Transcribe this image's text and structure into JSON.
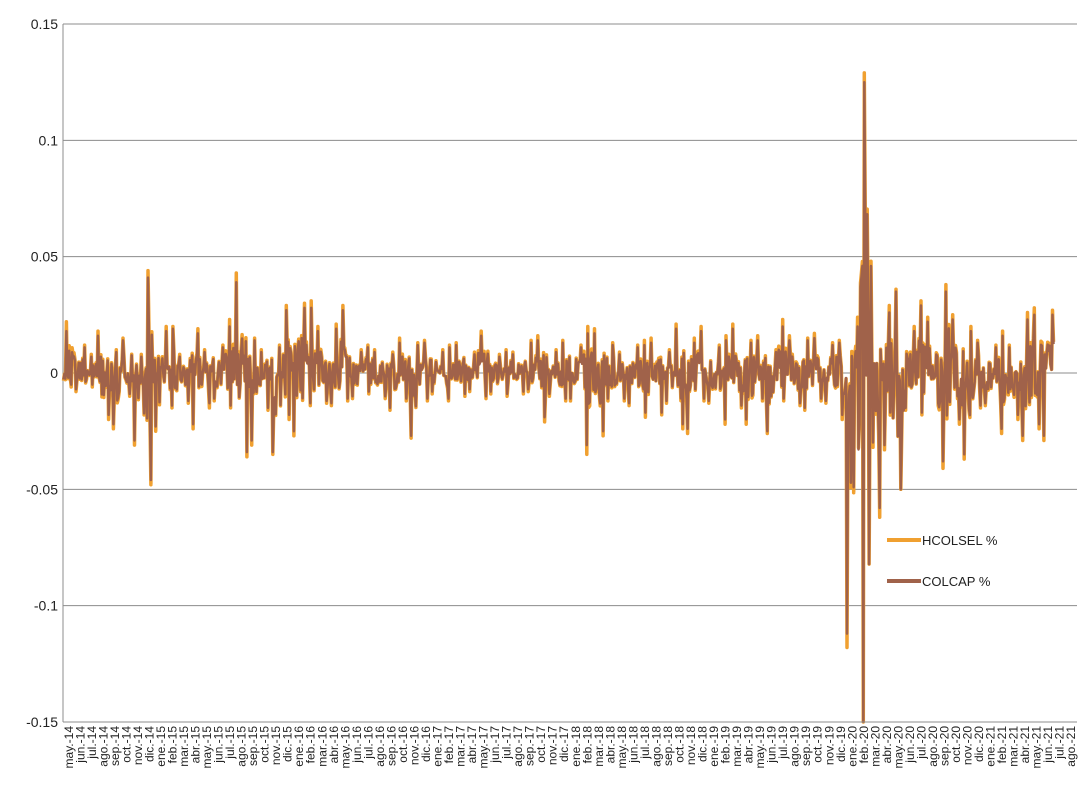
{
  "chart_data": {
    "type": "line",
    "title": "",
    "xlabel": "",
    "ylabel": "",
    "ylim": [
      -0.15,
      0.15
    ],
    "yticks": [
      0.15,
      0.1,
      0.05,
      0,
      -0.05,
      -0.1,
      -0.15
    ],
    "ytick_labels": [
      "0.15",
      "0.1",
      "0.05",
      "0",
      "-0.05",
      "-0.1",
      "-0.15"
    ],
    "grid": true,
    "legend_position": "right-inside",
    "x_categories": [
      "may.-14",
      "jun.-14",
      "jul.-14",
      "ago.-14",
      "sep.-14",
      "oct.-14",
      "nov.-14",
      "dic.-14",
      "ene.-15",
      "feb.-15",
      "mar.-15",
      "abr.-15",
      "may.-15",
      "jun.-15",
      "jul.-15",
      "ago.-15",
      "sep.-15",
      "oct.-15",
      "nov.-15",
      "dic.-15",
      "ene.-16",
      "feb.-16",
      "mar.-16",
      "abr.-16",
      "may.-16",
      "jun.-16",
      "jul.-16",
      "ago.-16",
      "sep.-16",
      "oct.-16",
      "nov.-16",
      "dic.-16",
      "ene.-17",
      "feb.-17",
      "mar.-17",
      "abr.-17",
      "may.-17",
      "jun.-17",
      "jul.-17",
      "ago.-17",
      "sep.-17",
      "oct.-17",
      "nov.-17",
      "dic.-17",
      "ene.-18",
      "feb.-18",
      "mar.-18",
      "abr.-18",
      "may.-18",
      "jun.-18",
      "jul.-18",
      "ago.-18",
      "sep.-18",
      "oct.-18",
      "nov.-18",
      "dic.-18",
      "ene.-19",
      "feb.-19",
      "mar.-19",
      "abr.-19",
      "may.-19",
      "jun.-19",
      "jul.-19",
      "ago.-19",
      "sep.-19",
      "oct.-19",
      "nov.-19",
      "dic.-19",
      "ene.-20",
      "feb.-20",
      "mar.-20",
      "abr.-20",
      "may.-20",
      "jun.-20",
      "jul.-20",
      "ago.-20",
      "sep.-20",
      "oct.-20",
      "nov.-20",
      "dic.-20",
      "ene.-21",
      "feb.-21",
      "mar.-21",
      "abr.-21",
      "may.-21",
      "jun.-21",
      "jul.-21",
      "ago.-21"
    ],
    "series": [
      {
        "name": "HCOLSEL %",
        "color": "#f0a030",
        "monthly_max": [
          0.022,
          0.012,
          0.008,
          0.018,
          0.01,
          0.015,
          0.008,
          0.044,
          0.02,
          0.02,
          0.008,
          0.019,
          0.01,
          0.012,
          0.023,
          0.043,
          0.015,
          0.01,
          0.012,
          0.029,
          0.03,
          0.031,
          0.02,
          0.021,
          0.029,
          0.01,
          0.012,
          0.01,
          0.009,
          0.015,
          0.013,
          0.014,
          0.01,
          0.012,
          0.013,
          0.009,
          0.018,
          0.008,
          0.01,
          0.009,
          0.014,
          0.016,
          0.01,
          0.014,
          0.012,
          0.02,
          0.019,
          0.013,
          0.009,
          0.012,
          0.014,
          0.015,
          0.01,
          0.021,
          0.015,
          0.02,
          0.012,
          0.016,
          0.021,
          0.014,
          0.016,
          0.01,
          0.023,
          0.016,
          0.015,
          0.017,
          0.013,
          0.014,
          0.024,
          0.129,
          0.048,
          0.029,
          0.036,
          0.02,
          0.031,
          0.024,
          0.038,
          0.025,
          0.02,
          0.014,
          0.012,
          0.018,
          0.012,
          0.026,
          0.028,
          0.027
        ],
        "monthly_min": [
          -0.006,
          -0.008,
          -0.006,
          -0.02,
          -0.024,
          -0.01,
          -0.031,
          -0.048,
          -0.025,
          -0.015,
          -0.013,
          -0.024,
          -0.015,
          -0.012,
          -0.015,
          -0.036,
          -0.031,
          -0.016,
          -0.035,
          -0.02,
          -0.027,
          -0.014,
          -0.013,
          -0.014,
          -0.012,
          -0.011,
          -0.009,
          -0.011,
          -0.016,
          -0.012,
          -0.028,
          -0.012,
          -0.009,
          -0.012,
          -0.01,
          -0.008,
          -0.011,
          -0.009,
          -0.01,
          -0.009,
          -0.008,
          -0.021,
          -0.01,
          -0.012,
          -0.012,
          -0.035,
          -0.027,
          -0.012,
          -0.012,
          -0.014,
          -0.019,
          -0.018,
          -0.013,
          -0.024,
          -0.026,
          -0.012,
          -0.013,
          -0.022,
          -0.015,
          -0.022,
          -0.012,
          -0.026,
          -0.012,
          -0.014,
          -0.016,
          -0.012,
          -0.013,
          -0.02,
          -0.118,
          -0.15,
          -0.062,
          -0.033,
          -0.05,
          -0.016,
          -0.018,
          -0.014,
          -0.041,
          -0.022,
          -0.037,
          -0.015,
          -0.014,
          -0.026,
          -0.02,
          -0.029,
          -0.024,
          -0.029
        ]
      },
      {
        "name": "COLCAP %",
        "color": "#a0624a",
        "monthly_max": [
          0.018,
          0.011,
          0.007,
          0.016,
          0.009,
          0.014,
          0.007,
          0.041,
          0.018,
          0.019,
          0.007,
          0.017,
          0.009,
          0.011,
          0.02,
          0.039,
          0.014,
          0.009,
          0.011,
          0.027,
          0.028,
          0.028,
          0.018,
          0.019,
          0.027,
          0.009,
          0.011,
          0.009,
          0.008,
          0.013,
          0.012,
          0.013,
          0.009,
          0.011,
          0.012,
          0.008,
          0.016,
          0.007,
          0.009,
          0.008,
          0.013,
          0.014,
          0.009,
          0.013,
          0.011,
          0.017,
          0.017,
          0.012,
          0.008,
          0.011,
          0.012,
          0.013,
          0.009,
          0.019,
          0.013,
          0.018,
          0.011,
          0.014,
          0.019,
          0.013,
          0.014,
          0.009,
          0.02,
          0.014,
          0.014,
          0.015,
          0.012,
          0.013,
          0.02,
          0.125,
          0.046,
          0.026,
          0.035,
          0.018,
          0.029,
          0.022,
          0.035,
          0.023,
          0.018,
          0.013,
          0.011,
          0.016,
          0.011,
          0.023,
          0.025,
          0.025
        ],
        "monthly_min": [
          -0.005,
          -0.007,
          -0.005,
          -0.018,
          -0.022,
          -0.009,
          -0.029,
          -0.046,
          -0.023,
          -0.014,
          -0.012,
          -0.022,
          -0.013,
          -0.011,
          -0.014,
          -0.034,
          -0.029,
          -0.015,
          -0.034,
          -0.018,
          -0.025,
          -0.013,
          -0.012,
          -0.013,
          -0.011,
          -0.01,
          -0.008,
          -0.01,
          -0.015,
          -0.011,
          -0.027,
          -0.011,
          -0.008,
          -0.011,
          -0.009,
          -0.007,
          -0.01,
          -0.008,
          -0.009,
          -0.008,
          -0.007,
          -0.019,
          -0.009,
          -0.011,
          -0.011,
          -0.031,
          -0.025,
          -0.011,
          -0.011,
          -0.013,
          -0.017,
          -0.017,
          -0.012,
          -0.022,
          -0.024,
          -0.011,
          -0.012,
          -0.02,
          -0.014,
          -0.02,
          -0.011,
          -0.025,
          -0.011,
          -0.013,
          -0.015,
          -0.011,
          -0.012,
          -0.018,
          -0.112,
          -0.15,
          -0.058,
          -0.031,
          -0.05,
          -0.015,
          -0.017,
          -0.013,
          -0.038,
          -0.02,
          -0.035,
          -0.014,
          -0.013,
          -0.024,
          -0.018,
          -0.027,
          -0.022,
          -0.027
        ]
      }
    ]
  }
}
